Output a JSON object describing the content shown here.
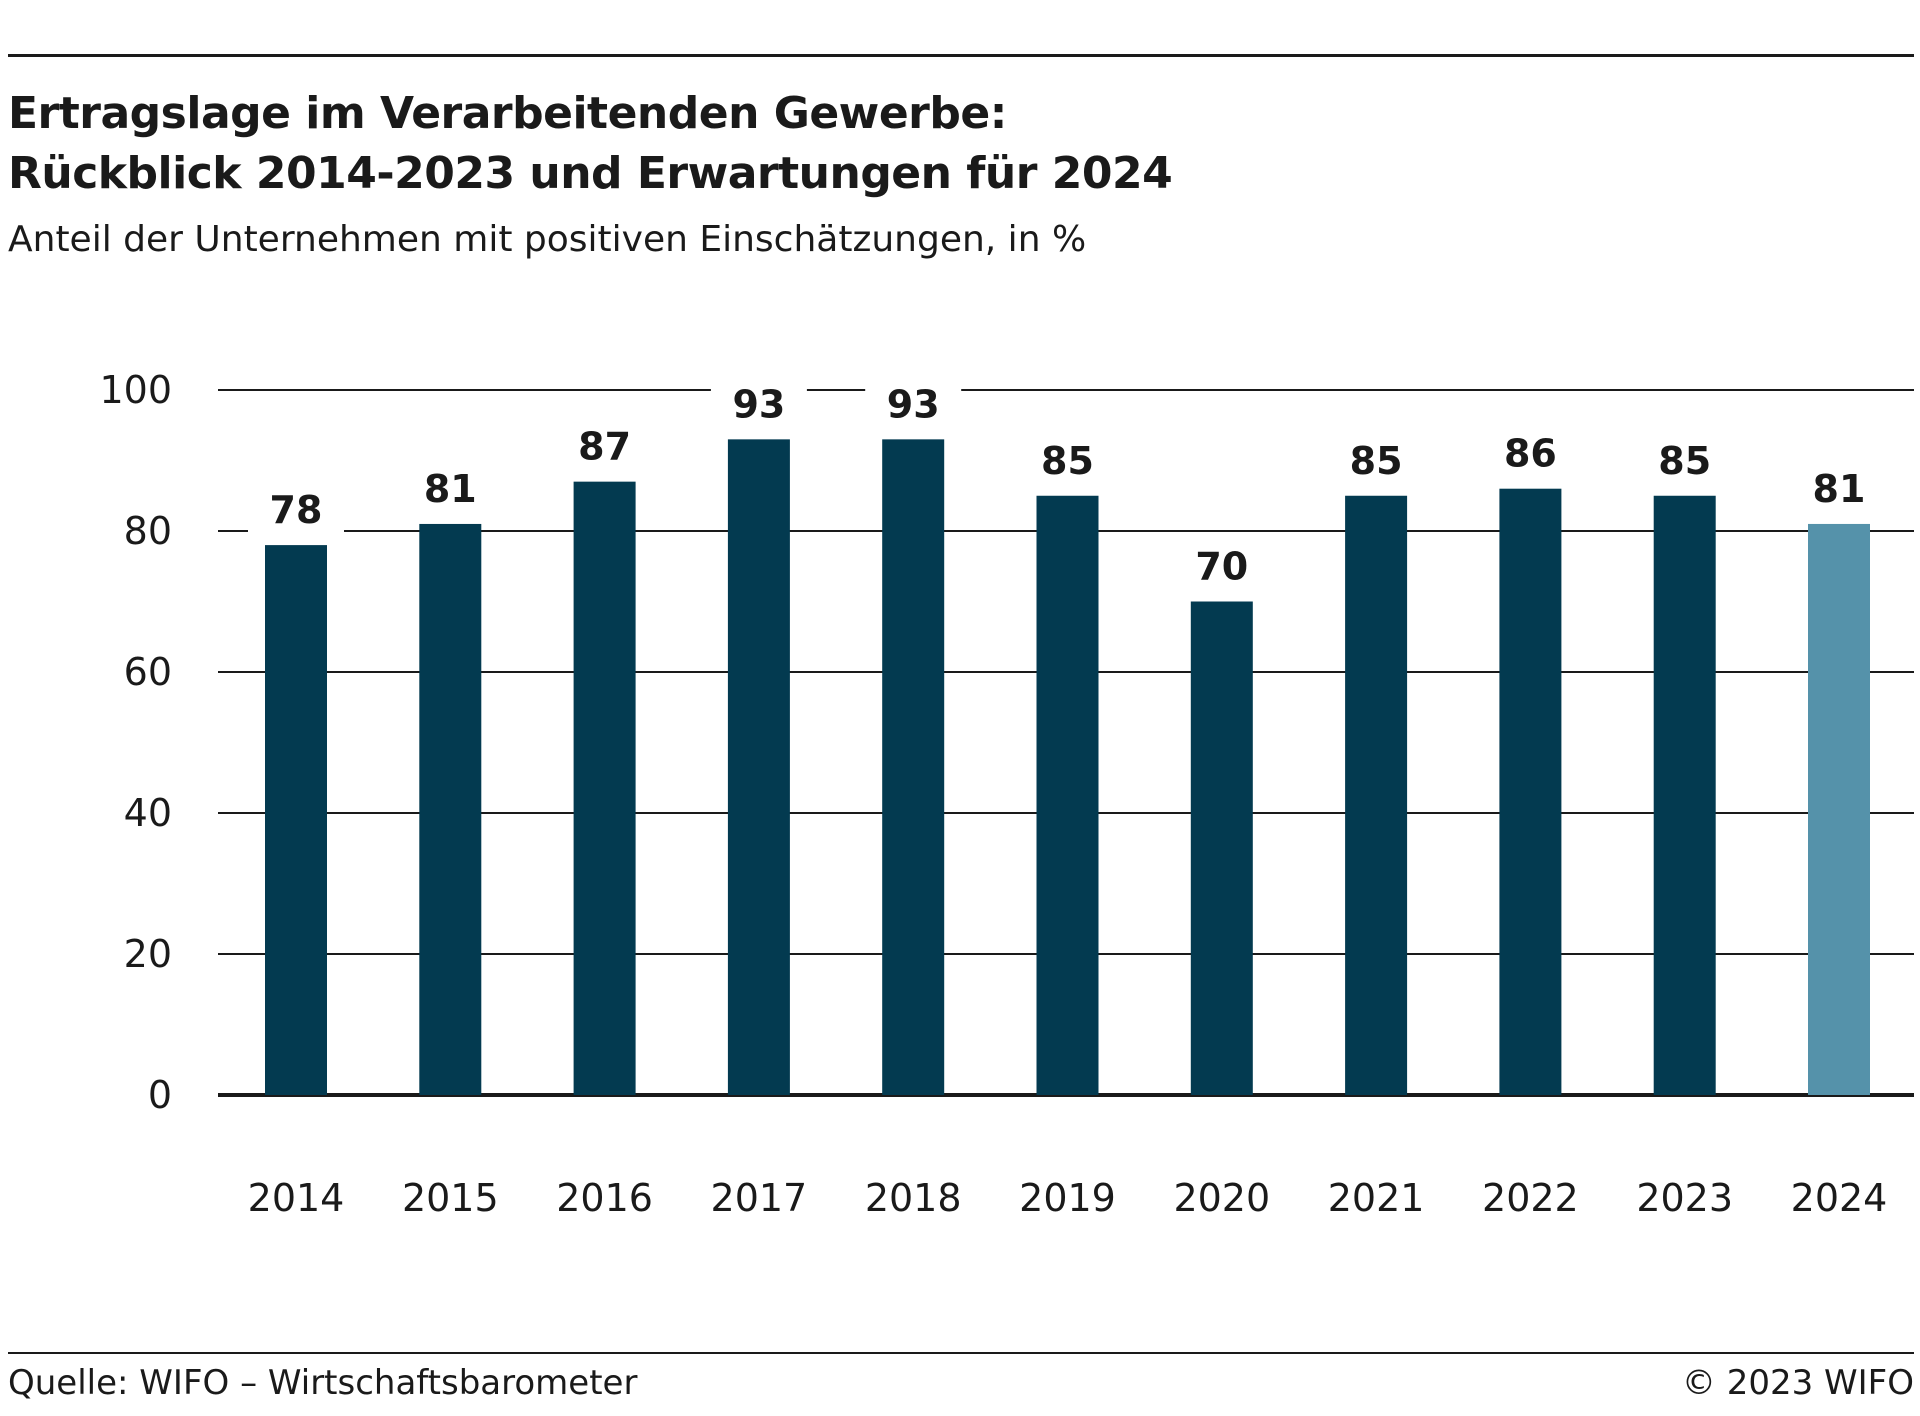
{
  "header": {
    "title_line1": "Ertragslage im Verarbeitenden Gewerbe:",
    "title_line2": "Rückblick 2014-2023 und Erwartungen für 2024",
    "subtitle": "Anteil der Unternehmen mit positiven Einschätzungen, in %"
  },
  "footer": {
    "source": "Quelle: WIFO – Wirtschaftsbarometer",
    "copyright": "© 2023 WIFO"
  },
  "colors": {
    "bar": "#033a50",
    "bar_forecast": "#5592aa",
    "gridline": "#1a1a1a"
  },
  "chart_data": {
    "type": "bar",
    "categories": [
      "2014",
      "2015",
      "2016",
      "2017",
      "2018",
      "2019",
      "2020",
      "2021",
      "2022",
      "2023",
      "2024"
    ],
    "values": [
      78,
      81,
      87,
      93,
      93,
      85,
      70,
      85,
      86,
      85,
      81
    ],
    "value_labels": [
      "78",
      "81",
      "87",
      "93",
      "93",
      "85",
      "70",
      "85",
      "86",
      "85",
      "81"
    ],
    "forecast_categories": [
      "2024"
    ],
    "ylim": [
      0,
      100
    ],
    "yticks": [
      0,
      20,
      40,
      60,
      80,
      100
    ],
    "ytick_labels": [
      "0",
      "20",
      "40",
      "60",
      "80",
      "100"
    ],
    "grid": true,
    "legend": "none",
    "xlabel": "",
    "ylabel": ""
  }
}
